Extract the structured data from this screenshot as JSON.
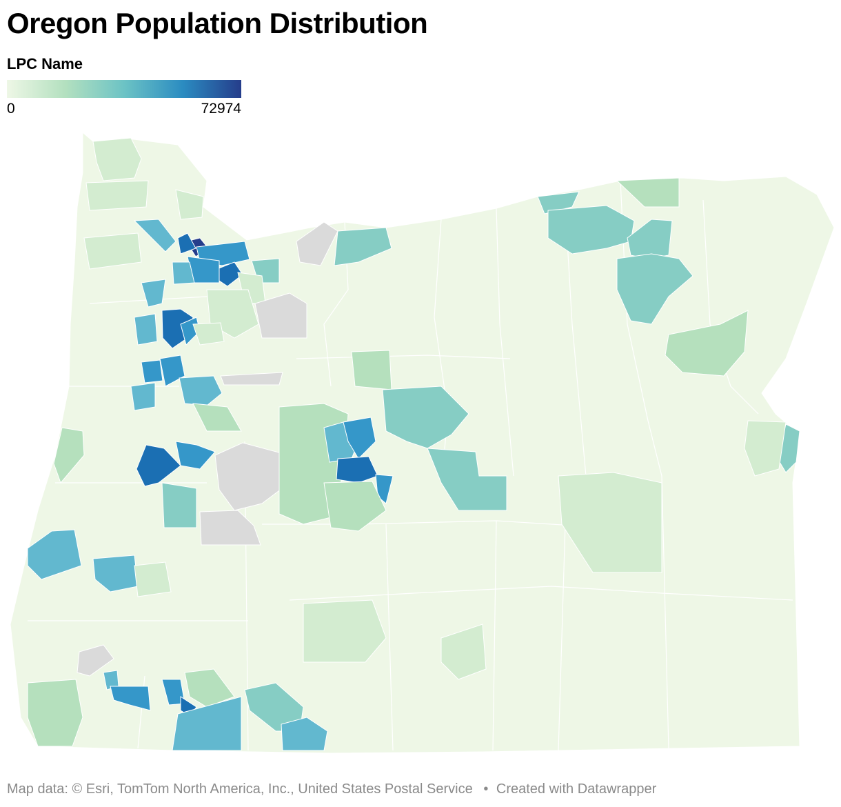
{
  "title": "Oregon Population Distribution",
  "legend": {
    "title": "LPC Name",
    "min_label": "0",
    "max_label": "72974",
    "gradient": [
      "#eef7e6",
      "#b3e0bf",
      "#6cc3c5",
      "#2b8cc1",
      "#253d8b"
    ]
  },
  "colors": {
    "base": "#eef7e6",
    "light_green": "#d3ecd0",
    "green": "#b5e0bd",
    "teal": "#86cdc4",
    "cyan": "#62b8cf",
    "blue": "#3597c9",
    "dark_blue": "#1b6fb3",
    "navy": "#253d8b",
    "no_data": "#dadada"
  },
  "footer": {
    "source": "Map data: © Esri, TomTom North America, Inc., United States Postal Service",
    "credit": "Created with Datawrapper"
  }
}
